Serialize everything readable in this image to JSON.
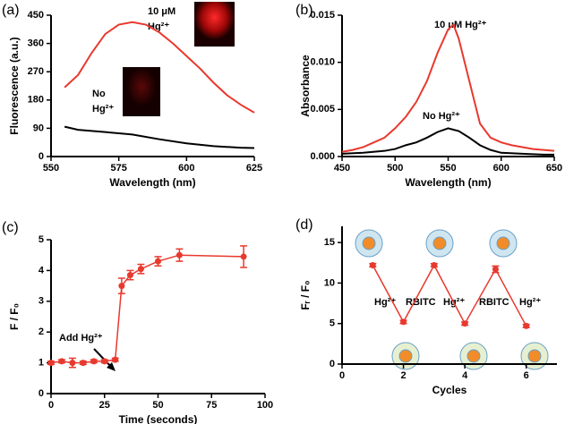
{
  "chart_data": [
    {
      "type": "line",
      "panel_label": "(a)",
      "xlabel": "Wavelength (nm)",
      "ylabel": "Fluorescence (a.u.)",
      "xlim": [
        550,
        625
      ],
      "xticks": [
        550,
        575,
        600,
        625
      ],
      "ylim": [
        0,
        450
      ],
      "yticks": [
        0,
        90,
        180,
        270,
        360,
        450
      ],
      "annotations": [
        "10 μM",
        "Hg²⁺",
        "No",
        "Hg²⁺"
      ],
      "series": [
        {
          "color": "#e8392e",
          "x": [
            555,
            560,
            565,
            570,
            575,
            580,
            585,
            590,
            595,
            600,
            605,
            610,
            615,
            620,
            625
          ],
          "values": [
            220,
            260,
            330,
            390,
            420,
            428,
            420,
            395,
            360,
            320,
            280,
            235,
            195,
            165,
            140
          ]
        },
        {
          "color": "#000000",
          "x": [
            555,
            560,
            570,
            580,
            590,
            600,
            610,
            620,
            625
          ],
          "values": [
            95,
            85,
            78,
            70,
            55,
            42,
            33,
            28,
            27
          ]
        }
      ]
    },
    {
      "type": "line",
      "panel_label": "(b)",
      "xlabel": "Wavelength (nm)",
      "ylabel": "Absorbance",
      "xlim": [
        450,
        650
      ],
      "xticks": [
        450,
        500,
        550,
        600,
        650
      ],
      "ylim": [
        0,
        0.015
      ],
      "yticks": [
        {
          "value": 0,
          "label": "0.000"
        },
        0.005,
        {
          "value": 0.01,
          "label": "0.010"
        },
        0.015
      ],
      "annotations": [
        "10 μM Hg²⁺",
        "No Hg²⁺"
      ],
      "series": [
        {
          "color": "#e8392e",
          "x": [
            450,
            460,
            470,
            480,
            490,
            500,
            510,
            520,
            530,
            540,
            550,
            555,
            560,
            570,
            580,
            590,
            600,
            610,
            620,
            630,
            640,
            650
          ],
          "values": [
            0.0005,
            0.0007,
            0.001,
            0.0015,
            0.002,
            0.003,
            0.0042,
            0.0058,
            0.008,
            0.011,
            0.0135,
            0.014,
            0.0125,
            0.008,
            0.0035,
            0.002,
            0.0015,
            0.0012,
            0.001,
            0.0008,
            0.0007,
            0.0006
          ]
        },
        {
          "color": "#000000",
          "x": [
            450,
            470,
            490,
            500,
            510,
            520,
            530,
            540,
            550,
            560,
            570,
            580,
            590,
            600,
            620,
            640,
            650
          ],
          "values": [
            0.0003,
            0.0004,
            0.0006,
            0.0008,
            0.0012,
            0.0015,
            0.002,
            0.0026,
            0.003,
            0.0027,
            0.002,
            0.0012,
            0.0007,
            0.0004,
            0.0003,
            0.0002,
            0.0002
          ]
        }
      ]
    },
    {
      "type": "errorbar",
      "panel_label": "(c)",
      "xlabel": "Time (seconds)",
      "ylabel": "F / F₀",
      "xlim": [
        0,
        100
      ],
      "xticks": [
        0,
        25,
        50,
        75,
        100
      ],
      "ylim": [
        0,
        5
      ],
      "yticks": [
        0,
        1,
        2,
        3,
        4,
        5
      ],
      "annotations": [
        "Add Hg²⁺"
      ],
      "x": [
        0,
        5,
        10,
        15,
        20,
        25,
        30,
        33,
        37,
        42,
        50,
        60,
        90
      ],
      "series": [
        {
          "color": "#e8392e",
          "values": [
            1.0,
            1.05,
            1.0,
            1.0,
            1.05,
            1.05,
            1.1,
            3.5,
            3.85,
            4.05,
            4.3,
            4.5,
            4.45
          ],
          "errors": [
            0.05,
            0.05,
            0.15,
            0.05,
            0.05,
            0.05,
            0.05,
            0.25,
            0.15,
            0.15,
            0.15,
            0.2,
            0.35
          ]
        }
      ]
    },
    {
      "type": "errorbar",
      "panel_label": "(d)",
      "xlabel": "Cycles",
      "ylabel": "Fᵣ / F₀",
      "xlim": [
        0,
        7
      ],
      "xticks": [
        0,
        2,
        4,
        6
      ],
      "ylim": [
        0,
        17
      ],
      "yticks": [
        0,
        5,
        10,
        15
      ],
      "annotations": [
        "Hg²⁺",
        "RBITC",
        "Hg²⁺",
        "RBITC",
        "Hg²⁺"
      ],
      "x": [
        1,
        2,
        3,
        4,
        5,
        6
      ],
      "series": [
        {
          "color": "#e8392e",
          "values": [
            12.2,
            5.2,
            12.2,
            5.0,
            11.7,
            4.7
          ],
          "errors": [
            0.2,
            0.2,
            0.2,
            0.2,
            0.4,
            0.2
          ]
        }
      ]
    }
  ]
}
